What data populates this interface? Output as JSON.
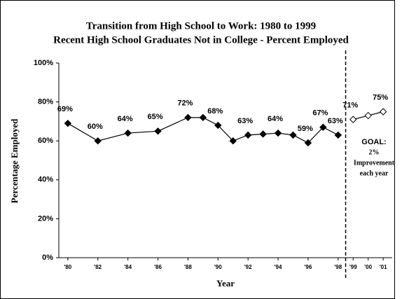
{
  "chart_data": {
    "type": "line",
    "title": [
      "Transition from High School to Work:  1980 to 1999",
      "Recent High School Graduates Not in College - Percent Employed"
    ],
    "y_label": "Percentage Employed",
    "x_label": "Year",
    "xlim": [
      1979.4,
      2001.6
    ],
    "xticks": [
      {
        "value": 1980,
        "label": "'80"
      },
      {
        "value": 1982,
        "label": "'82"
      },
      {
        "value": 1984,
        "label": "'84"
      },
      {
        "value": 1986,
        "label": "'86"
      },
      {
        "value": 1988,
        "label": "'88"
      },
      {
        "value": 1990,
        "label": "'90"
      },
      {
        "value": 1992,
        "label": "'92"
      },
      {
        "value": 1994,
        "label": "'94"
      },
      {
        "value": 1996,
        "label": "'96"
      },
      {
        "value": 1998,
        "label": "'98"
      },
      {
        "value": 1999,
        "label": "'99"
      },
      {
        "value": 2000,
        "label": "'00"
      },
      {
        "value": 2001,
        "label": "'01"
      }
    ],
    "ylim": [
      0,
      100
    ],
    "yticks": [
      {
        "value": 0,
        "label": "0%"
      },
      {
        "value": 20,
        "label": "20%"
      },
      {
        "value": 40,
        "label": "40%"
      },
      {
        "value": 60,
        "label": "60%"
      },
      {
        "value": 80,
        "label": "80%"
      },
      {
        "value": 100,
        "label": "100%"
      }
    ],
    "series": [
      {
        "marker": "filled",
        "color": "#000000",
        "x": [
          1980,
          1982,
          1984,
          1986,
          1988,
          1989,
          1990,
          1991,
          1992,
          1993,
          1994,
          1995,
          1996,
          1997,
          1998
        ],
        "values": [
          69,
          60,
          64,
          65,
          72,
          72,
          68,
          60,
          63,
          63.5,
          64,
          63,
          59,
          67,
          63
        ],
        "value_labels": [
          "69%",
          "60%",
          "64%",
          "65%",
          "72%",
          null,
          "68%",
          null,
          "63%",
          null,
          "64%",
          null,
          "59%",
          "67%",
          "63%"
        ]
      },
      {
        "marker": "open",
        "color": "#000000",
        "x": [
          1999,
          2000,
          2001
        ],
        "values": [
          71,
          73,
          75
        ],
        "value_labels": [
          "71%",
          null,
          "75%"
        ]
      }
    ],
    "annotation": [
      "GOAL:",
      "2%",
      "Improvement",
      "each year"
    ]
  }
}
